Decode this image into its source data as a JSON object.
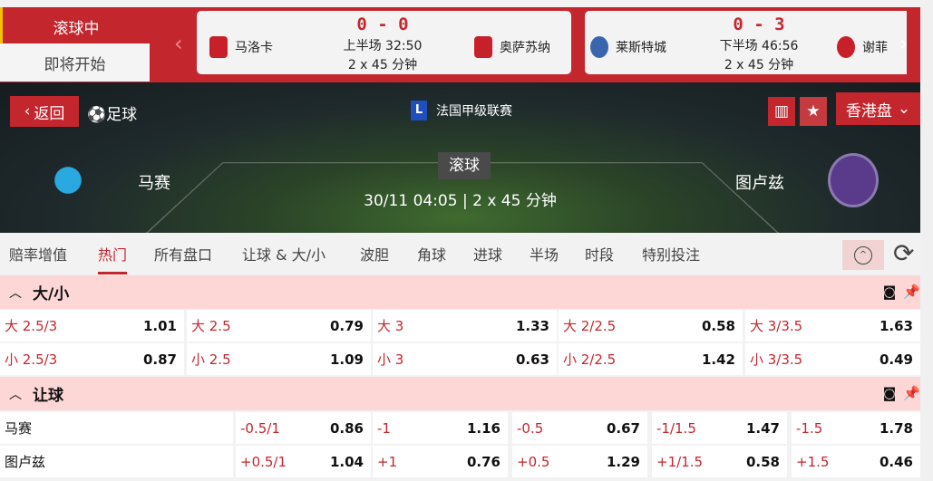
{
  "left_tabs": [
    "滚球中",
    "即将开始"
  ],
  "matches": [
    {
      "home": "马洛卡",
      "away": "奥萨苏纳",
      "score": "0 - 0",
      "status": "上半场 32:50",
      "duration": "2 x 45 分钟",
      "home_color": "#c8202a",
      "away_color": "#c8202a"
    },
    {
      "home": "莱斯特城",
      "away": "谢菲",
      "score": "0 - 3",
      "status": "下半场 46:56",
      "duration": "2 x 45 分钟",
      "home_color": "#3a66b0",
      "away_color": "#c8202a"
    }
  ],
  "hero": {
    "back": "返回",
    "sport": "足球",
    "league": "法国甲级联赛",
    "league_logo": "L",
    "odds_format": "香港盘",
    "live": "滚球",
    "datetime": "30/11 04:05 | 2 x 45 分钟",
    "home": "马赛",
    "away": "图卢兹",
    "home_color": "#2aa8e0",
    "away_color": "#5a3a8a"
  },
  "tabs": [
    "赔率增值",
    "热门",
    "所有盘口",
    "让球 & 大/小",
    "波胆",
    "角球",
    "进球",
    "半场",
    "时段",
    "特别投注"
  ],
  "active_tab": "热门",
  "ou": {
    "title": "大/小",
    "rows": [
      [
        [
          "大 2.5/3",
          "1.01"
        ],
        [
          "大 2.5",
          "0.79"
        ],
        [
          "大 3",
          "1.33"
        ],
        [
          "大 2/2.5",
          "0.58"
        ],
        [
          "大 3/3.5",
          "1.63"
        ]
      ],
      [
        [
          "小 2.5/3",
          "0.87"
        ],
        [
          "小 2.5",
          "1.09"
        ],
        [
          "小 3",
          "0.63"
        ],
        [
          "小 2/2.5",
          "1.42"
        ],
        [
          "小 3/3.5",
          "0.49"
        ]
      ]
    ]
  },
  "hdp": {
    "title": "让球",
    "rows": [
      {
        "team": "马赛",
        "cells": [
          [
            "-0.5/1",
            "0.86"
          ],
          [
            "-1",
            "1.16"
          ],
          [
            "-0.5",
            "0.67"
          ],
          [
            "-1/1.5",
            "1.47"
          ],
          [
            "-1.5",
            "1.78"
          ]
        ]
      },
      {
        "team": "图卢兹",
        "cells": [
          [
            "+0.5/1",
            "1.04"
          ],
          [
            "+1",
            "0.76"
          ],
          [
            "+0.5",
            "1.29"
          ],
          [
            "+1/1.5",
            "0.58"
          ],
          [
            "+1.5",
            "0.46"
          ]
        ]
      }
    ]
  }
}
